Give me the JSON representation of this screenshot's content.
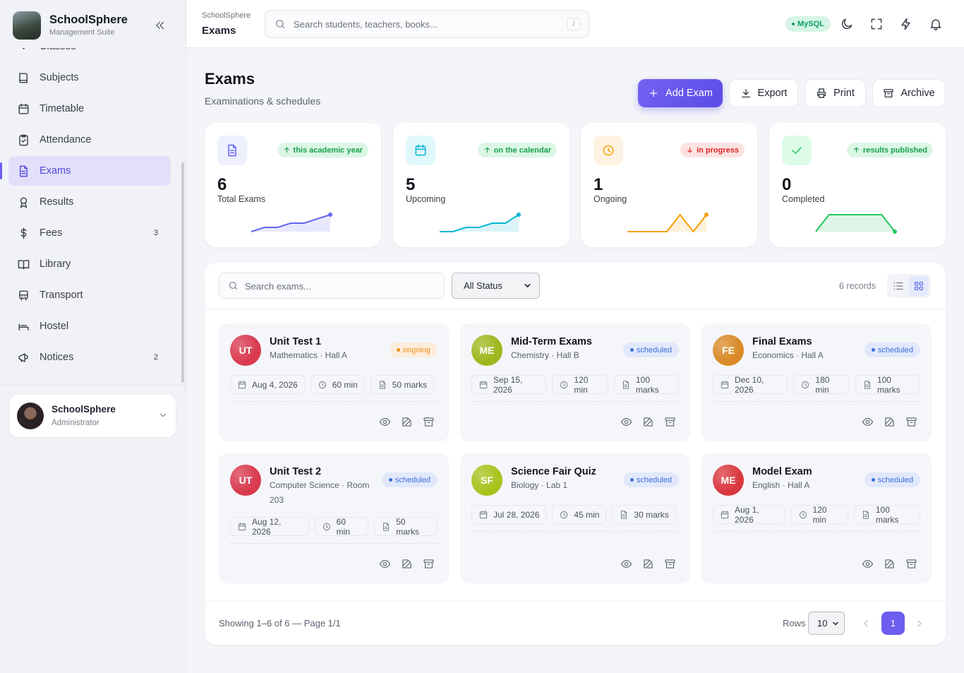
{
  "sidebar": {
    "brand": {
      "name": "SchoolSphere",
      "subtitle": "Management Suite"
    },
    "nav": [
      {
        "label": "Classes"
      },
      {
        "label": "Subjects"
      },
      {
        "label": "Timetable"
      },
      {
        "label": "Attendance"
      },
      {
        "label": "Exams",
        "active": true
      },
      {
        "label": "Results"
      },
      {
        "label": "Fees",
        "badge": 3
      },
      {
        "label": "Library"
      },
      {
        "label": "Transport"
      },
      {
        "label": "Hostel"
      },
      {
        "label": "Notices",
        "badge": 2
      }
    ],
    "user": {
      "name": "SchoolSphere",
      "role": "Administrator"
    }
  },
  "header": {
    "breadcrumb": "SchoolSphere",
    "page": "Exams",
    "search_placeholder": "Search students, teachers, books...",
    "shortcut": "/",
    "db": "MySQL"
  },
  "page": {
    "title": "Exams",
    "subtitle": "Examinations & schedules",
    "actions": [
      "Add Exam",
      "Export",
      "Print",
      "Archive"
    ]
  },
  "stats": [
    {
      "value": 6,
      "label": "Total Exams",
      "trend": "this academic year",
      "direction": "up",
      "color": "#6366f1",
      "bg": "#eef0fe",
      "sparkline": [
        1,
        2,
        2,
        3,
        3,
        4,
        5
      ]
    },
    {
      "value": 5,
      "label": "Upcoming",
      "trend": "on the calendar",
      "direction": "up",
      "color": "#06b6d4",
      "bg": "#e0f7fb",
      "sparkline": [
        1,
        1,
        2,
        2,
        3,
        3,
        5
      ]
    },
    {
      "value": 1,
      "label": "Ongoing",
      "trend": "in progress",
      "direction": "down",
      "color": "#f59e0b",
      "bg": "#fef3e2",
      "sparkline": [
        0,
        0,
        0,
        0,
        1,
        0,
        1
      ]
    },
    {
      "value": 0,
      "label": "Completed",
      "trend": "results published",
      "direction": "up",
      "color": "#22c55e",
      "bg": "#dcfce7",
      "sparkline": [
        0,
        1,
        1,
        1,
        1,
        1,
        0
      ]
    }
  ],
  "toolbar": {
    "search_placeholder": "Search exams...",
    "filter": "All Status",
    "records": "6 records"
  },
  "exams": [
    {
      "initials": "UT",
      "name": "Unit Test 1",
      "details": "Mathematics · Hall A",
      "status": "ongoing",
      "date": "Aug 4, 2026",
      "duration": "60 min",
      "marks": "50 marks",
      "color": "#d93a4f"
    },
    {
      "initials": "ME",
      "name": "Mid-Term Exams",
      "details": "Chemistry · Hall B",
      "status": "scheduled",
      "date": "Sep 15, 2026",
      "duration": "120 min",
      "marks": "100 marks",
      "color": "#9cb81e"
    },
    {
      "initials": "FE",
      "name": "Final Exams",
      "details": "Economics · Hall A",
      "status": "scheduled",
      "date": "Dec 10, 2026",
      "duration": "180 min",
      "marks": "100 marks",
      "color": "#d98a26"
    },
    {
      "initials": "UT",
      "name": "Unit Test 2",
      "details": "Computer Science · Room 203",
      "status": "scheduled",
      "date": "Aug 12, 2026",
      "duration": "60 min",
      "marks": "50 marks",
      "color": "#d93a4f"
    },
    {
      "initials": "SF",
      "name": "Science Fair Quiz",
      "details": "Biology · Lab 1",
      "status": "scheduled",
      "date": "Jul 28, 2026",
      "duration": "45 min",
      "marks": "30 marks",
      "color": "#a8c21c"
    },
    {
      "initials": "ME",
      "name": "Model Exam",
      "details": "English · Hall A",
      "status": "scheduled",
      "date": "Aug 1, 2026",
      "duration": "120 min",
      "marks": "100 marks",
      "color": "#d9373f"
    }
  ],
  "footer": {
    "summary": "Showing 1–6 of 6 — Page 1/1",
    "rows_label": "Rows",
    "rows": 10,
    "page": 1
  }
}
